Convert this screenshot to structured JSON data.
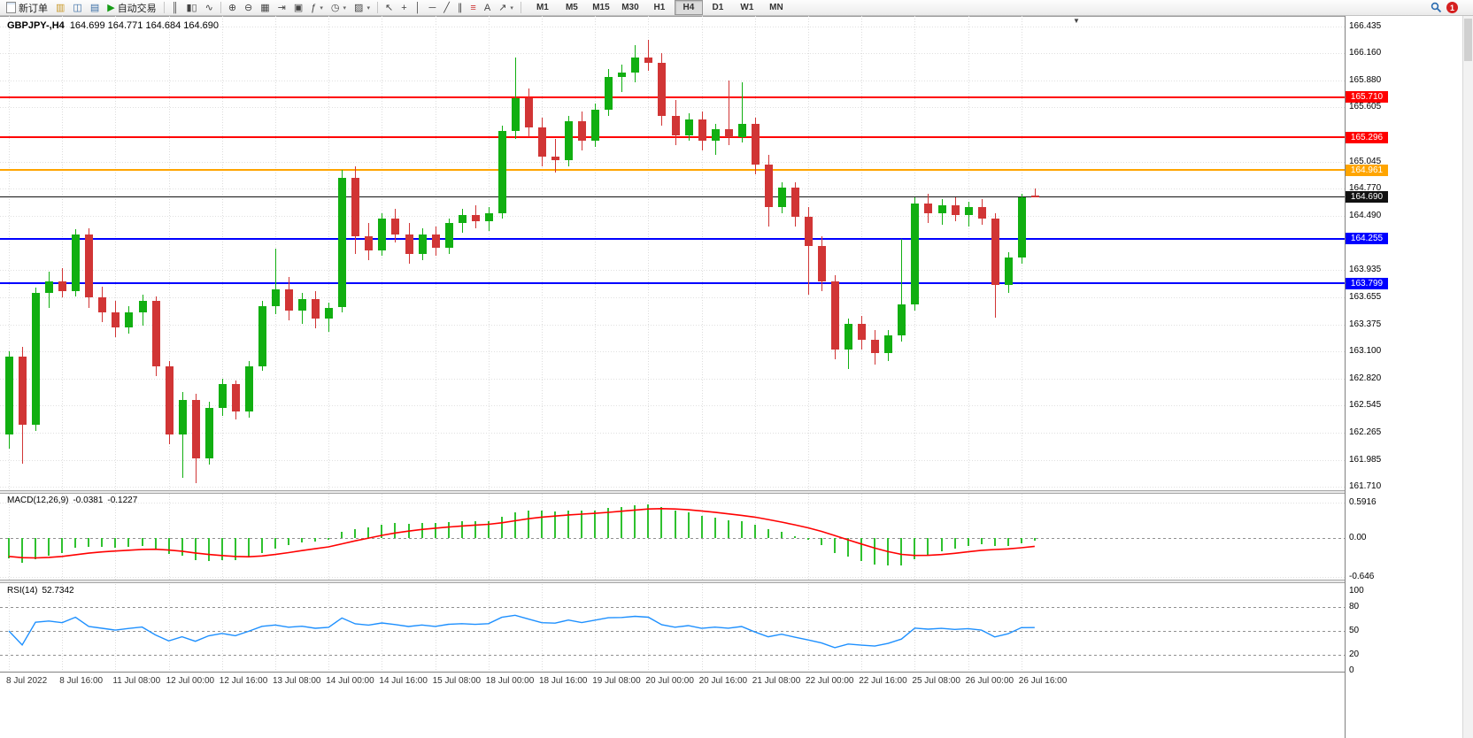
{
  "toolbar": {
    "new_order": "新订单",
    "autotrading": "自动交易",
    "timeframes": [
      "M1",
      "M5",
      "M15",
      "M30",
      "H1",
      "H4",
      "D1",
      "W1",
      "MN"
    ],
    "active_timeframe": "H4",
    "notification_badge": "1"
  },
  "chart": {
    "symbol_period": "GBPJPY-,H4",
    "ohlc": "164.699 164.771 164.684 164.690"
  },
  "macd": {
    "label": "MACD(12,26,9)",
    "main_value": "-0.0381",
    "signal_value": "-0.1227",
    "params": {
      "fast": 12,
      "slow": 26,
      "signal": 9
    },
    "axis_ticks": [
      "0.5916",
      "0.00",
      "-0.646"
    ],
    "histogram_color": "#2fc12f",
    "signal_color": "#ff0000"
  },
  "rsi": {
    "label": "RSI(14)",
    "value": "52.7342",
    "period": 14,
    "axis_ticks": [
      "100",
      "80",
      "50",
      "20",
      "0"
    ],
    "levels": [
      80,
      50,
      20
    ],
    "line_color": "#1e90ff"
  },
  "chart_data": {
    "type": "candlestick",
    "symbol": "GBPJPY-",
    "timeframe": "H4",
    "current": {
      "open": 164.699,
      "high": 164.771,
      "low": 164.684,
      "close": 164.69
    },
    "colors": {
      "bull": "#11af11",
      "bear": "#d13535"
    },
    "price_axis": {
      "min": 161.71,
      "max": 166.435,
      "ticks": [
        "166.435",
        "166.160",
        "165.880",
        "165.605",
        "165.045",
        "164.770",
        "164.490",
        "163.935",
        "163.655",
        "163.375",
        "163.100",
        "162.820",
        "162.545",
        "162.265",
        "161.985",
        "161.710"
      ]
    },
    "horizontal_lines": [
      {
        "price": 165.71,
        "label": "165.710",
        "color": "#ff0000",
        "role": "resistance"
      },
      {
        "price": 165.296,
        "label": "165.296",
        "color": "#ff0000",
        "role": "resistance"
      },
      {
        "price": 164.961,
        "label": "164.961",
        "color": "#ffa500",
        "role": "level"
      },
      {
        "price": 164.69,
        "label": "164.690",
        "color": "#111111",
        "role": "current-price"
      },
      {
        "price": 164.255,
        "label": "164.255",
        "color": "#0000ff",
        "role": "support"
      },
      {
        "price": 163.799,
        "label": "163.799",
        "color": "#0000ff",
        "role": "support"
      }
    ],
    "time_labels": [
      "8 Jul 2022",
      "8 Jul 16:00",
      "11 Jul 08:00",
      "12 Jul 00:00",
      "12 Jul 16:00",
      "13 Jul 08:00",
      "14 Jul 00:00",
      "14 Jul 16:00",
      "15 Jul 08:00",
      "18 Jul 00:00",
      "18 Jul 16:00",
      "19 Jul 08:00",
      "20 Jul 00:00",
      "20 Jul 16:00",
      "21 Jul 08:00",
      "22 Jul 00:00",
      "22 Jul 16:00",
      "25 Jul 08:00",
      "26 Jul 00:00",
      "26 Jul 16:00"
    ],
    "bars_per_label": 4,
    "candles": [
      [
        162.25,
        163.1,
        162.1,
        163.05
      ],
      [
        163.05,
        163.15,
        161.95,
        162.35
      ],
      [
        162.35,
        163.75,
        162.28,
        163.7
      ],
      [
        163.7,
        163.92,
        163.55,
        163.82
      ],
      [
        163.82,
        163.95,
        163.65,
        163.72
      ],
      [
        163.72,
        164.35,
        163.66,
        164.3
      ],
      [
        164.3,
        164.36,
        163.55,
        163.65
      ],
      [
        163.65,
        163.76,
        163.4,
        163.5
      ],
      [
        163.5,
        163.62,
        163.25,
        163.35
      ],
      [
        163.35,
        163.56,
        163.28,
        163.5
      ],
      [
        163.5,
        163.68,
        163.36,
        163.62
      ],
      [
        163.62,
        163.66,
        162.85,
        162.95
      ],
      [
        162.95,
        163.0,
        162.15,
        162.25
      ],
      [
        162.25,
        162.68,
        161.8,
        162.6
      ],
      [
        162.6,
        162.66,
        161.75,
        162.0
      ],
      [
        162.0,
        162.58,
        161.94,
        162.52
      ],
      [
        162.52,
        162.82,
        162.44,
        162.76
      ],
      [
        162.76,
        162.8,
        162.4,
        162.48
      ],
      [
        162.48,
        163.0,
        162.42,
        162.95
      ],
      [
        162.95,
        163.62,
        162.9,
        163.56
      ],
      [
        163.56,
        164.15,
        163.48,
        163.74
      ],
      [
        163.74,
        163.86,
        163.42,
        163.52
      ],
      [
        163.52,
        163.7,
        163.38,
        163.64
      ],
      [
        163.64,
        163.72,
        163.34,
        163.44
      ],
      [
        163.44,
        163.6,
        163.3,
        163.55
      ],
      [
        163.55,
        164.96,
        163.5,
        164.88
      ],
      [
        164.88,
        165.0,
        164.1,
        164.28
      ],
      [
        164.28,
        164.42,
        164.04,
        164.14
      ],
      [
        164.14,
        164.52,
        164.08,
        164.46
      ],
      [
        164.46,
        164.56,
        164.22,
        164.3
      ],
      [
        164.3,
        164.42,
        164.0,
        164.1
      ],
      [
        164.1,
        164.36,
        164.04,
        164.3
      ],
      [
        164.3,
        164.38,
        164.08,
        164.16
      ],
      [
        164.16,
        164.46,
        164.1,
        164.42
      ],
      [
        164.42,
        164.56,
        164.32,
        164.5
      ],
      [
        164.5,
        164.6,
        164.36,
        164.44
      ],
      [
        164.44,
        164.58,
        164.34,
        164.52
      ],
      [
        164.52,
        165.42,
        164.46,
        165.36
      ],
      [
        165.36,
        166.12,
        165.28,
        165.7
      ],
      [
        165.7,
        165.8,
        165.3,
        165.4
      ],
      [
        165.4,
        165.5,
        165.0,
        165.1
      ],
      [
        165.1,
        165.28,
        164.94,
        165.06
      ],
      [
        165.06,
        165.52,
        165.0,
        165.46
      ],
      [
        165.46,
        165.56,
        165.16,
        165.26
      ],
      [
        165.26,
        165.64,
        165.2,
        165.58
      ],
      [
        165.58,
        166.0,
        165.52,
        165.92
      ],
      [
        165.92,
        166.04,
        165.76,
        165.96
      ],
      [
        165.96,
        166.24,
        165.86,
        166.12
      ],
      [
        166.12,
        166.3,
        165.98,
        166.06
      ],
      [
        166.06,
        166.16,
        165.42,
        165.52
      ],
      [
        165.52,
        165.68,
        165.22,
        165.32
      ],
      [
        165.32,
        165.54,
        165.26,
        165.48
      ],
      [
        165.48,
        165.56,
        165.16,
        165.26
      ],
      [
        165.26,
        165.44,
        165.12,
        165.38
      ],
      [
        165.38,
        165.88,
        165.22,
        165.3
      ],
      [
        165.3,
        165.86,
        165.24,
        165.44
      ],
      [
        165.44,
        165.5,
        164.92,
        165.02
      ],
      [
        165.02,
        165.12,
        164.38,
        164.58
      ],
      [
        164.58,
        164.84,
        164.52,
        164.78
      ],
      [
        164.78,
        164.84,
        164.38,
        164.48
      ],
      [
        164.48,
        164.58,
        163.68,
        164.18
      ],
      [
        164.18,
        164.28,
        163.72,
        163.82
      ],
      [
        163.82,
        163.88,
        163.02,
        163.12
      ],
      [
        163.12,
        163.44,
        162.92,
        163.38
      ],
      [
        163.38,
        163.46,
        163.12,
        163.22
      ],
      [
        163.22,
        163.32,
        162.96,
        163.08
      ],
      [
        163.08,
        163.32,
        163.0,
        163.26
      ],
      [
        163.26,
        164.25,
        163.2,
        163.58
      ],
      [
        163.58,
        164.68,
        163.52,
        164.62
      ],
      [
        164.62,
        164.72,
        164.42,
        164.52
      ],
      [
        164.52,
        164.66,
        164.4,
        164.6
      ],
      [
        164.6,
        164.68,
        164.44,
        164.5
      ],
      [
        164.5,
        164.64,
        164.38,
        164.58
      ],
      [
        164.58,
        164.66,
        164.4,
        164.46
      ],
      [
        164.46,
        164.52,
        163.45,
        163.78
      ],
      [
        163.78,
        164.12,
        163.7,
        164.06
      ],
      [
        164.06,
        164.72,
        164.0,
        164.68
      ],
      [
        164.699,
        164.771,
        164.684,
        164.69
      ]
    ]
  }
}
